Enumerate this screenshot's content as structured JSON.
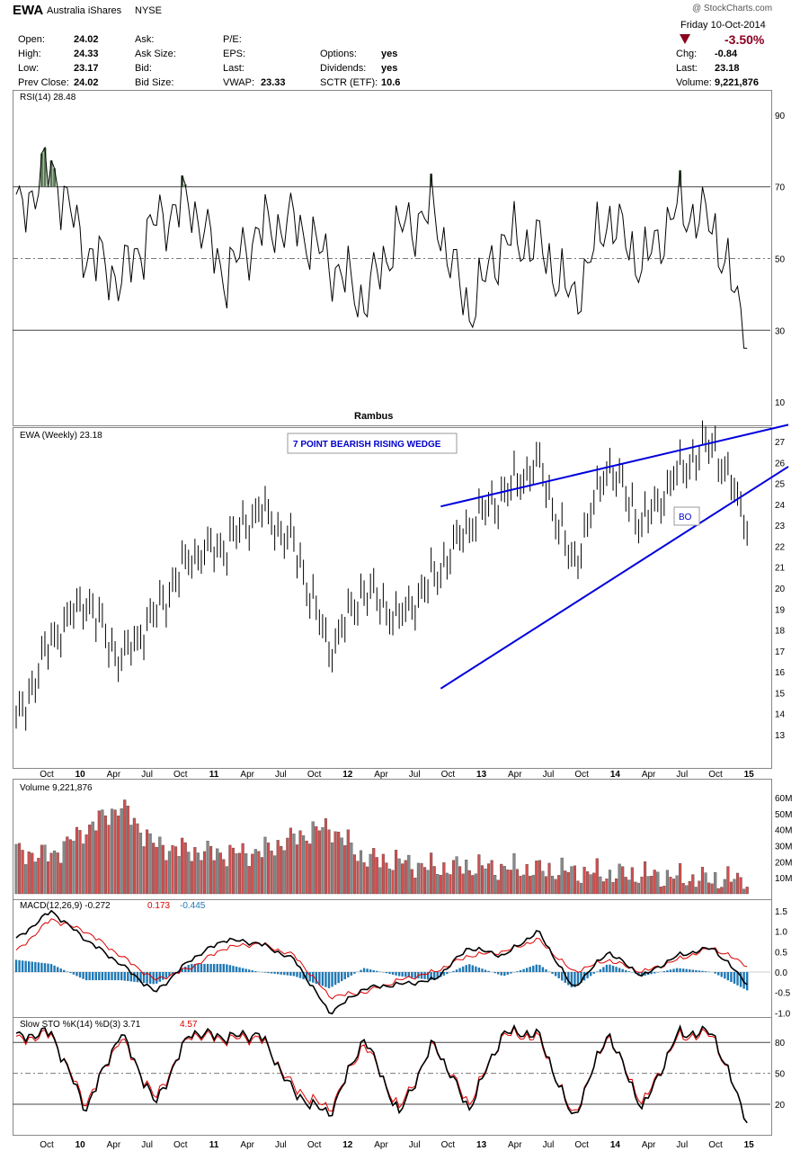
{
  "header": {
    "symbol": "EWA",
    "name": "Australia iShares",
    "exchange": "NYSE",
    "watermark": "@ StockCharts.com",
    "date": "Friday  10-Oct-2014",
    "change_pct": "-3.50%",
    "left_fields": [
      {
        "label": "Open:",
        "value": "24.02"
      },
      {
        "label": "High:",
        "value": "24.33"
      },
      {
        "label": "Low:",
        "value": "23.17"
      },
      {
        "label": "Prev Close:",
        "value": "24.02"
      }
    ],
    "mid_fields": [
      "Ask:",
      "Ask Size:",
      "Bid:",
      "Bid Size:"
    ],
    "pe_fields": [
      {
        "label": "P/E:",
        "value": ""
      },
      {
        "label": "EPS:",
        "value": ""
      },
      {
        "label": "Last:",
        "value": ""
      },
      {
        "label": "VWAP:",
        "value": "23.33"
      }
    ],
    "opt_fields": [
      {
        "label": "Options:",
        "value": "yes"
      },
      {
        "label": "Dividends:",
        "value": "yes"
      },
      {
        "label": "SCTR (ETF):",
        "value": "10.6"
      }
    ],
    "right_fields": [
      {
        "label": "Chg:",
        "value": "-0.84"
      },
      {
        "label": "Last:",
        "value": "23.18"
      },
      {
        "label": "Volume:",
        "value": "9,221,876"
      }
    ]
  },
  "chart_data": [
    {
      "type": "line",
      "title": "RSI(14) 28.48",
      "ylim": [
        0,
        100
      ],
      "yticks": [
        "90",
        "70",
        "50",
        "30",
        "10"
      ],
      "reference_lines": [
        70,
        50,
        30
      ],
      "x_dates": [
        "2009-07",
        "2009-10",
        "2010-01",
        "2010-04",
        "2010-07",
        "2010-10",
        "2011-01",
        "2011-04",
        "2011-07",
        "2011-10",
        "2012-01",
        "2012-04",
        "2012-07",
        "2012-10",
        "2013-01",
        "2013-04",
        "2013-07",
        "2013-10",
        "2014-01",
        "2014-04",
        "2014-07",
        "2014-10"
      ],
      "values": [
        62,
        76,
        52,
        44,
        60,
        66,
        45,
        58,
        60,
        49,
        38,
        58,
        63,
        35,
        55,
        54,
        38,
        62,
        48,
        64,
        60,
        29
      ],
      "overbought_fill": "#5a7a55"
    },
    {
      "type": "candlestick",
      "title": "EWA (Weekly) 23.18",
      "credit": "Rambus",
      "yticks": [
        "27",
        "26",
        "25",
        "24",
        "23",
        "22",
        "21",
        "20",
        "19",
        "18",
        "17",
        "16",
        "15",
        "14",
        "13"
      ],
      "x_dates": [
        "2009-07",
        "2009-10",
        "2010-01",
        "2010-04",
        "2010-07",
        "2010-10",
        "2011-01",
        "2011-04",
        "2011-07",
        "2011-10",
        "2012-01",
        "2012-04",
        "2012-07",
        "2012-10",
        "2013-01",
        "2013-04",
        "2013-07",
        "2013-10",
        "2014-01",
        "2014-04",
        "2014-07",
        "2014-10"
      ],
      "close": [
        13.5,
        17.5,
        19.5,
        16.5,
        18.8,
        21.5,
        22.0,
        23.8,
        22.0,
        17.0,
        20.0,
        18.5,
        20.5,
        23.0,
        24.5,
        26.0,
        21.0,
        26.0,
        23.0,
        25.5,
        27.0,
        23.18
      ],
      "annotations": [
        "7 POINT BEARISH RISING WEDGE",
        "BO"
      ],
      "trendlines": [
        {
          "from": [
            "2011-01",
            23.9
          ],
          "to": [
            "2014-12",
            27.8
          ]
        },
        {
          "from": [
            "2011-01",
            15.2
          ],
          "to": [
            "2014-12",
            25.8
          ]
        }
      ],
      "line_color": "#0000dd"
    },
    {
      "type": "bar",
      "title": "Volume 9,221,876",
      "yticks": [
        "60M",
        "50M",
        "40M",
        "30M",
        "20M",
        "10M"
      ],
      "unit": "M",
      "x_dates": [
        "2009-07",
        "2009-10",
        "2010-01",
        "2010-04",
        "2010-07",
        "2010-10",
        "2011-01",
        "2011-04",
        "2011-07",
        "2011-10",
        "2012-01",
        "2012-04",
        "2012-07",
        "2012-10",
        "2013-01",
        "2013-04",
        "2013-07",
        "2013-10",
        "2014-01",
        "2014-04",
        "2014-07",
        "2014-10"
      ],
      "values": [
        26,
        24,
        40,
        55,
        30,
        27,
        25,
        26,
        35,
        42,
        22,
        20,
        16,
        17,
        16,
        15,
        14,
        12,
        12,
        10,
        9,
        9
      ]
    },
    {
      "type": "line",
      "title": "MACD(12,26,9) -0.272, 0.173, -0.445",
      "series_labels": [
        "MACD(12,26,9) -0.272",
        "0.173",
        "-0.445"
      ],
      "yticks": [
        "1.5",
        "1.0",
        "0.5",
        "0.0",
        "-0.5",
        "-1.0"
      ],
      "ylim": [
        -1.1,
        1.7
      ],
      "x_dates": [
        "2009-07",
        "2009-10",
        "2010-01",
        "2010-04",
        "2010-07",
        "2010-10",
        "2011-01",
        "2011-04",
        "2011-07",
        "2011-10",
        "2012-01",
        "2012-04",
        "2012-07",
        "2012-10",
        "2013-01",
        "2013-04",
        "2013-07",
        "2013-10",
        "2014-01",
        "2014-04",
        "2014-07",
        "2014-10"
      ],
      "series": [
        {
          "values": [
            0.8,
            1.5,
            0.8,
            0.2,
            -0.5,
            0.3,
            0.8,
            0.7,
            0.3,
            -1.0,
            -0.4,
            -0.3,
            -0.2,
            0.6,
            0.4,
            1.0,
            -0.4,
            0.5,
            -0.1,
            0.4,
            0.6,
            -0.27
          ],
          "color": "#000000"
        },
        {
          "values": [
            0.5,
            1.3,
            1.0,
            0.4,
            -0.2,
            0.1,
            0.6,
            0.7,
            0.4,
            -0.6,
            -0.5,
            -0.2,
            0.0,
            0.4,
            0.5,
            0.8,
            0.0,
            0.3,
            0.0,
            0.3,
            0.6,
            0.17
          ],
          "color": "#dd0000"
        },
        {
          "values": [
            0.3,
            0.2,
            -0.2,
            -0.2,
            -0.3,
            0.2,
            0.2,
            0.0,
            -0.1,
            -0.4,
            0.1,
            -0.1,
            -0.2,
            0.2,
            -0.1,
            0.2,
            -0.4,
            0.2,
            -0.1,
            0.1,
            0.0,
            -0.45
          ],
          "color": "#1f78b4",
          "kind": "histogram"
        }
      ]
    },
    {
      "type": "line",
      "title": "Slow STO %K(14) %D(3) 3.71, 4.57",
      "series_labels": [
        "Slow STO %K(14) %D(3) 3.71",
        "4.57"
      ],
      "yticks": [
        "80",
        "50",
        "20"
      ],
      "ylim": [
        0,
        100
      ],
      "reference_lines": [
        80,
        50,
        20
      ],
      "x_dates": [
        "2009-07",
        "2009-10",
        "2010-01",
        "2010-04",
        "2010-07",
        "2010-10",
        "2011-01",
        "2011-04",
        "2011-07",
        "2011-10",
        "2012-01",
        "2012-04",
        "2012-07",
        "2012-10",
        "2013-01",
        "2013-04",
        "2013-07",
        "2013-10",
        "2014-01",
        "2014-04",
        "2014-07",
        "2014-10"
      ],
      "series": [
        {
          "values": [
            85,
            90,
            15,
            90,
            20,
            90,
            85,
            88,
            30,
            10,
            85,
            10,
            80,
            15,
            90,
            88,
            5,
            90,
            15,
            88,
            90,
            4
          ],
          "color": "#000000"
        },
        {
          "values": [
            82,
            88,
            20,
            85,
            25,
            88,
            83,
            85,
            35,
            15,
            80,
            15,
            78,
            20,
            88,
            85,
            8,
            88,
            20,
            85,
            88,
            5
          ],
          "color": "#dd0000"
        }
      ]
    }
  ],
  "x_axis_labels": [
    "Oct",
    "10",
    "Apr",
    "Jul",
    "Oct",
    "11",
    "Apr",
    "Jul",
    "Oct",
    "12",
    "Apr",
    "Jul",
    "Oct",
    "13",
    "Apr",
    "Jul",
    "Oct",
    "14",
    "Apr",
    "Jul",
    "Oct",
    "15"
  ]
}
